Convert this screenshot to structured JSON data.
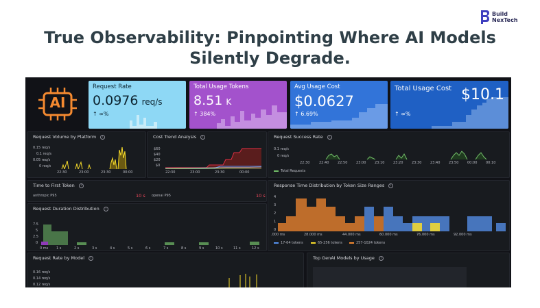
{
  "headline": {
    "line1": "True Observability: Pinpointing Where AI Models",
    "line2": "Silently Degrade."
  },
  "brand": {
    "line1": "Build",
    "line2": "NexTech"
  },
  "colors": {
    "brand": "#3f3fbf",
    "dashboard_bg": "#111217",
    "accent_orange": "#f58a30",
    "green": "#73bf69",
    "blue": "#5794f2",
    "yellow": "#fade2a"
  },
  "logo": {
    "text": "AI"
  },
  "stats": [
    {
      "label": "Request Rate",
      "value": "0.0976",
      "unit": "req/s",
      "delta": "↑ ∞%"
    },
    {
      "label": "Total Usage Tokens",
      "value": "8.51",
      "unit": "K",
      "delta": "↑ 384%"
    },
    {
      "label": "Avg Usage Cost",
      "value": "$0.0627",
      "unit": "",
      "delta": "↑ 6.69%"
    },
    {
      "label": "Total Usage Cost",
      "value": "$10.1",
      "unit": "",
      "delta": "↑ ∞%"
    }
  ],
  "panels": {
    "request_volume": {
      "title": "Request Volume by Platform",
      "y_ticks": [
        "0.15 req/s",
        "0.1 req/s",
        "0.05 req/s",
        "0 req/s"
      ],
      "x_ticks": [
        "22:30",
        "23:00",
        "23:30",
        "00:00"
      ]
    },
    "cost_trend": {
      "title": "Cost Trend Analysis",
      "y_ticks": [
        "$60",
        "$40",
        "$20",
        "$0"
      ],
      "x_ticks": [
        "22:30",
        "23:00",
        "23:30",
        "00:00"
      ]
    },
    "success_rate": {
      "title": "Request Success Rate",
      "y_ticks": [
        "0.1 req/s",
        "0 req/s"
      ],
      "x_ticks": [
        "22:30",
        "22:40",
        "22:50",
        "23:00",
        "23:10",
        "23:20",
        "23:30",
        "23:40",
        "23:50",
        "00:00",
        "00:10"
      ],
      "legend": "Total Requests"
    },
    "ttft": {
      "title": "Time to First Token",
      "rows": [
        {
          "name": "anthropic P95",
          "value": "10 s"
        },
        {
          "name": "openai P95",
          "value": "10 s"
        }
      ]
    },
    "duration_dist": {
      "title": "Request Duration Distribution",
      "y_ticks": [
        "7.5",
        "5",
        "2.5",
        "0"
      ],
      "x_ticks": [
        "0 ms",
        "1 s",
        "2 s",
        "3 s",
        "4 s",
        "5 s",
        "6 s",
        "7 s",
        "8 s",
        "9 s",
        "10 s",
        "11 s",
        "12 s"
      ]
    },
    "response_time": {
      "title": "Response Time Distribution by Token Size Ranges",
      "y_ticks": [
        "4",
        "3",
        "2",
        "1",
        "0"
      ],
      "x_ticks": [
        ".000 ms",
        "28.000 ms",
        "44.000 ms",
        "60.000 ms",
        "76.000 ms",
        "92.000 ms"
      ],
      "legend": [
        "17-64 tokens",
        "65-256 tokens",
        "257-1024 tokens"
      ]
    },
    "rate_by_model": {
      "title": "Request Rate by Model",
      "y_ticks": [
        "0.16 req/s",
        "0.14 req/s",
        "0.12 req/s"
      ]
    },
    "top_models": {
      "title": "Top GenAI Models by Usage"
    }
  }
}
